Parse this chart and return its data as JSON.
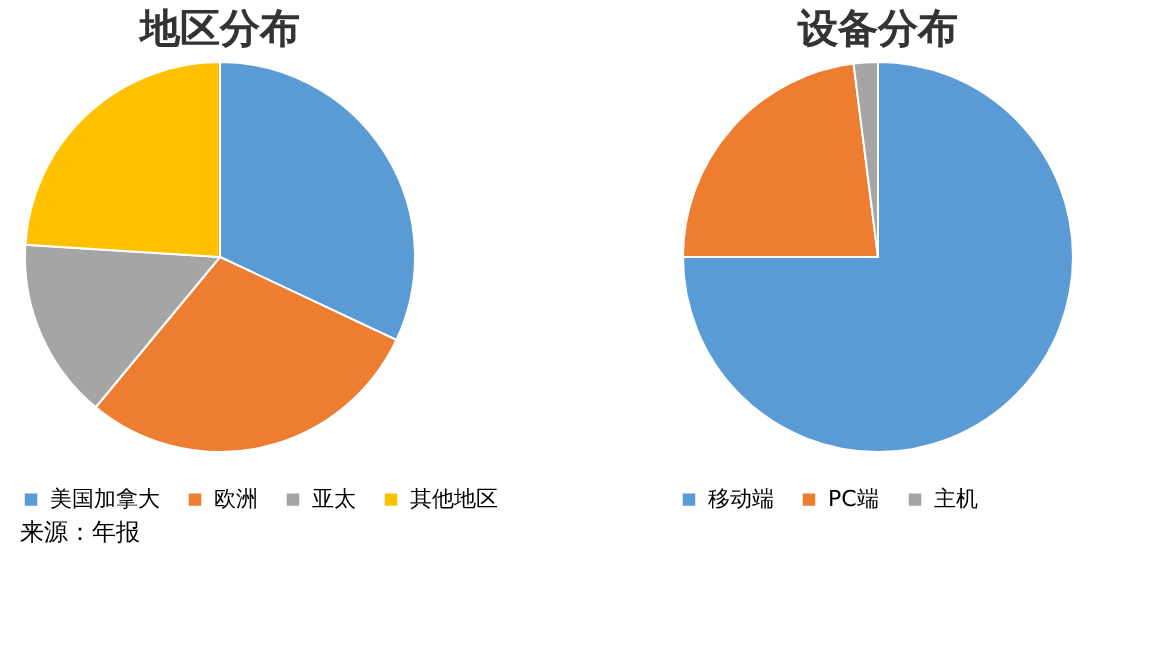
{
  "chart_data": [
    {
      "type": "pie",
      "title": "地区分布",
      "categories": [
        "美国加拿大",
        "欧洲",
        "亚太",
        "其他地区"
      ],
      "values": [
        32,
        29,
        15,
        24
      ],
      "colors": [
        "#5b9bd5",
        "#ed7d31",
        "#a5a5a5",
        "#ffc000"
      ],
      "legend": "bottom",
      "annotations": [
        "来源：年报"
      ]
    },
    {
      "type": "pie",
      "title": "设备分布",
      "categories": [
        "移动端",
        "PC端",
        "主机"
      ],
      "values": [
        75,
        23,
        2
      ],
      "colors": [
        "#5b9bd5",
        "#ed7d31",
        "#a5a5a5"
      ],
      "legend": "bottom"
    }
  ]
}
